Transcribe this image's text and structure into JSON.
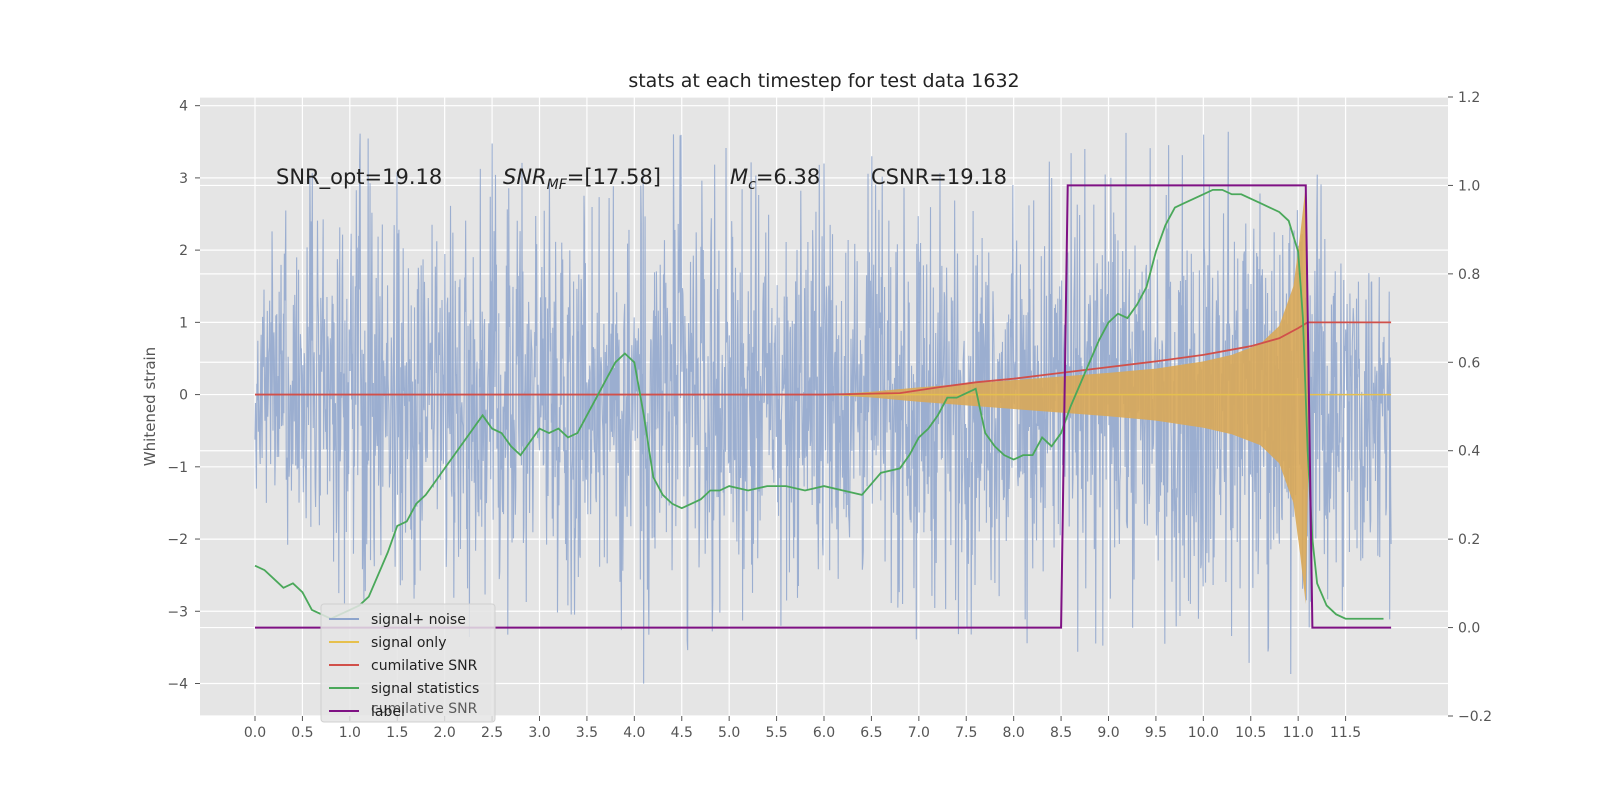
{
  "chart_data": {
    "type": "line",
    "title": "stats at each timestep for test data 1632",
    "ylabel": "Whitened strain",
    "y2label": "",
    "xlim": [
      -0.58,
      12.58
    ],
    "ylim": [
      -4.45,
      4.12
    ],
    "y2lim": [
      -0.2,
      1.2
    ],
    "xticks": [
      "0.0",
      "0.5",
      "1.0",
      "1.5",
      "2.0",
      "2.5",
      "3.0",
      "3.5",
      "4.0",
      "4.5",
      "5.0",
      "5.5",
      "6.0",
      "6.5",
      "7.0",
      "7.5",
      "8.0",
      "8.5",
      "9.0",
      "9.5",
      "10.0",
      "10.5",
      "11.0",
      "11.5"
    ],
    "yticks": [
      4,
      3,
      2,
      1,
      0,
      -1,
      -2,
      -3,
      -4
    ],
    "yticklabels": [
      "4",
      "3",
      "2",
      "1",
      "0",
      "−1",
      "−2",
      "−3",
      "−4"
    ],
    "y2ticks": [
      1.2,
      1.0,
      0.8,
      0.6,
      0.4,
      0.2,
      0.0,
      -0.2
    ],
    "y2ticklabels": [
      "1.2",
      "1.0",
      "0.8",
      "0.6",
      "0.4",
      "0.2",
      "0.0",
      "−0.2"
    ],
    "grid": true,
    "legend_position": "lower left",
    "annotations": [
      {
        "text": "SNR_opt=19.18",
        "math": false
      },
      {
        "text": "SNR",
        "sub": "MF",
        "rest": "=[17.58]",
        "math": true
      },
      {
        "text": "M",
        "sub": "c",
        "rest": "=6.38",
        "math": true
      },
      {
        "text": "CSNR=19.18",
        "math": false
      }
    ],
    "series": [
      {
        "name": "signal+ noise",
        "axis": "left",
        "color": "#8ea4cc",
        "envelope_x": [
          0.0,
          0.5,
          1.0,
          1.5,
          2.0,
          2.5,
          3.0,
          3.5,
          4.0,
          4.5,
          5.0,
          5.5,
          6.0,
          6.5,
          7.0,
          7.5,
          8.0,
          8.5,
          9.0,
          9.5,
          10.0,
          10.5,
          11.0,
          11.5,
          11.98
        ],
        "envelope_high": [
          1.9,
          2.9,
          3.7,
          3.3,
          3.3,
          3.4,
          3.5,
          3.6,
          3.3,
          3.6,
          3.4,
          3.0,
          3.2,
          3.3,
          3.2,
          2.9,
          3.0,
          3.3,
          3.5,
          3.4,
          3.6,
          3.5,
          3.7,
          2.8,
          2.5
        ],
        "envelope_low": [
          -1.4,
          -3.0,
          -3.3,
          -3.3,
          -3.2,
          -3.5,
          -3.2,
          -3.3,
          -4.1,
          -3.6,
          -3.1,
          -3.2,
          -3.2,
          -3.2,
          -3.4,
          -3.3,
          -3.5,
          -3.3,
          -3.5,
          -3.3,
          -4.1,
          -3.7,
          -3.9,
          -3.5,
          -3.1
        ]
      },
      {
        "name": "signal only",
        "axis": "left",
        "color": "#e6c04d",
        "fill_color": "#d9a858",
        "x": [
          6.0,
          6.5,
          7.0,
          7.5,
          8.0,
          8.5,
          9.0,
          9.5,
          10.0,
          10.3,
          10.6,
          10.8,
          10.95,
          11.02,
          11.08,
          11.12
        ],
        "amplitude": [
          0.0,
          0.04,
          0.1,
          0.15,
          0.2,
          0.25,
          0.3,
          0.36,
          0.46,
          0.55,
          0.7,
          0.95,
          1.5,
          2.2,
          2.9,
          0.0
        ]
      },
      {
        "name": "cumilative SNR",
        "axis": "left",
        "color": "#d1504a",
        "x": [
          0.0,
          6.0,
          6.4,
          6.8,
          7.2,
          7.6,
          8.0,
          8.5,
          9.0,
          9.5,
          10.0,
          10.5,
          10.8,
          11.0,
          11.1,
          11.98
        ],
        "y": [
          0.0,
          0.0,
          0.01,
          0.02,
          0.1,
          0.17,
          0.22,
          0.3,
          0.38,
          0.46,
          0.55,
          0.67,
          0.78,
          0.92,
          1.0,
          1.0
        ]
      },
      {
        "name": "signal statistics",
        "axis": "right",
        "color": "#4aa85a",
        "x": [
          0.0,
          0.1,
          0.2,
          0.3,
          0.4,
          0.5,
          0.6,
          0.7,
          0.8,
          0.9,
          1.0,
          1.1,
          1.2,
          1.3,
          1.4,
          1.5,
          1.6,
          1.7,
          1.8,
          1.9,
          2.0,
          2.1,
          2.2,
          2.3,
          2.4,
          2.5,
          2.6,
          2.7,
          2.8,
          2.9,
          3.0,
          3.1,
          3.2,
          3.3,
          3.4,
          3.5,
          3.6,
          3.7,
          3.8,
          3.9,
          4.0,
          4.1,
          4.2,
          4.3,
          4.4,
          4.5,
          4.6,
          4.7,
          4.8,
          4.9,
          5.0,
          5.2,
          5.4,
          5.6,
          5.8,
          6.0,
          6.2,
          6.4,
          6.6,
          6.8,
          6.9,
          7.0,
          7.1,
          7.2,
          7.3,
          7.4,
          7.5,
          7.6,
          7.7,
          7.8,
          7.9,
          8.0,
          8.1,
          8.2,
          8.3,
          8.4,
          8.5,
          8.6,
          8.7,
          8.8,
          8.9,
          9.0,
          9.1,
          9.2,
          9.3,
          9.4,
          9.5,
          9.6,
          9.7,
          9.8,
          9.9,
          10.0,
          10.1,
          10.2,
          10.3,
          10.4,
          10.5,
          10.6,
          10.7,
          10.8,
          10.9,
          11.0,
          11.05,
          11.1,
          11.15,
          11.2,
          11.3,
          11.4,
          11.5,
          11.6,
          11.7,
          11.8,
          11.9
        ],
        "y": [
          0.14,
          0.13,
          0.11,
          0.09,
          0.1,
          0.08,
          0.04,
          0.03,
          0.02,
          0.03,
          0.04,
          0.05,
          0.07,
          0.12,
          0.17,
          0.23,
          0.24,
          0.28,
          0.3,
          0.33,
          0.36,
          0.39,
          0.42,
          0.45,
          0.48,
          0.45,
          0.44,
          0.41,
          0.39,
          0.42,
          0.45,
          0.44,
          0.45,
          0.43,
          0.44,
          0.48,
          0.52,
          0.56,
          0.6,
          0.62,
          0.6,
          0.48,
          0.34,
          0.3,
          0.28,
          0.27,
          0.28,
          0.29,
          0.31,
          0.31,
          0.32,
          0.31,
          0.32,
          0.32,
          0.31,
          0.32,
          0.31,
          0.3,
          0.35,
          0.36,
          0.39,
          0.43,
          0.45,
          0.48,
          0.52,
          0.52,
          0.53,
          0.54,
          0.44,
          0.41,
          0.39,
          0.38,
          0.39,
          0.39,
          0.43,
          0.41,
          0.44,
          0.5,
          0.55,
          0.6,
          0.65,
          0.69,
          0.71,
          0.7,
          0.73,
          0.77,
          0.85,
          0.91,
          0.95,
          0.96,
          0.97,
          0.98,
          0.99,
          0.99,
          0.98,
          0.98,
          0.97,
          0.96,
          0.95,
          0.94,
          0.92,
          0.85,
          0.7,
          0.4,
          0.2,
          0.1,
          0.05,
          0.03,
          0.02,
          0.02,
          0.02,
          0.02,
          0.02
        ]
      },
      {
        "name": "label",
        "axis": "right",
        "color": "#7f1184",
        "x": [
          0.0,
          8.5,
          8.57,
          11.08,
          11.15,
          11.98
        ],
        "y": [
          0.0,
          0.0,
          1.0,
          1.0,
          0.0,
          0.0
        ]
      }
    ],
    "legend": [
      {
        "label": "signal+ noise",
        "color": "#8ea4cc"
      },
      {
        "label": "signal only",
        "color": "#e6c04d"
      },
      {
        "label": "cumilative SNR",
        "color": "#d1504a"
      },
      {
        "label": "signal statistics",
        "color": "#4aa85a"
      },
      {
        "label": "label",
        "color": "#7f1184"
      }
    ],
    "ghost_legend_text": "cumilative SNR"
  },
  "colors": {
    "plot_background": "#e5e5e5",
    "grid": "#ffffff",
    "axis_text": "#555555"
  }
}
